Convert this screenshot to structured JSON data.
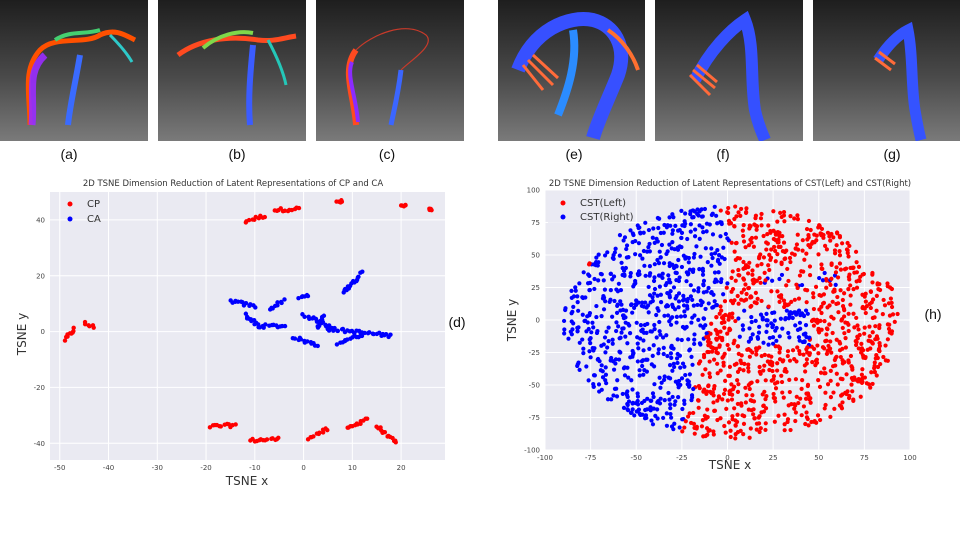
{
  "panels": [
    {
      "id": "a",
      "label": "(a)"
    },
    {
      "id": "b",
      "label": "(b)"
    },
    {
      "id": "c",
      "label": "(c)"
    },
    {
      "id": "e",
      "label": "(e)"
    },
    {
      "id": "f",
      "label": "(f)"
    },
    {
      "id": "g",
      "label": "(g)"
    }
  ],
  "chart_labels": {
    "d": "(d)",
    "h": "(h)"
  },
  "colors": {
    "red": "#ff0000",
    "blue": "#0000ff",
    "plot_bg": "#eaeaf2",
    "grid": "#ffffff"
  },
  "chart_data": [
    {
      "type": "scatter",
      "title": "2D TSNE Dimension Reduction of Latent Representations of CP and CA",
      "xlabel": "TSNE x",
      "ylabel": "TSNE y",
      "xlim": [
        -52,
        29
      ],
      "ylim": [
        -46,
        50
      ],
      "xticks": [
        -50,
        -40,
        -30,
        -20,
        -10,
        0,
        10,
        20
      ],
      "yticks": [
        -40,
        -20,
        0,
        20,
        40
      ],
      "legend": "top-left",
      "series": [
        {
          "name": "CP",
          "color": "#ff0000",
          "segments": [
            [
              -49,
              -3,
              -47,
              1
            ],
            [
              -45,
              3,
              -43,
              1.5
            ],
            [
              -12,
              39.5,
              -8,
              41.5
            ],
            [
              -6,
              43.5,
              -1,
              44
            ],
            [
              7,
              46.5,
              8,
              46.5
            ],
            [
              20,
              45,
              21,
              45
            ],
            [
              26,
              43.5,
              26,
              43.5
            ],
            [
              -19,
              -34,
              -14,
              -33.5
            ],
            [
              -11,
              -39,
              -5,
              -38.5
            ],
            [
              1,
              -38,
              5,
              -35
            ],
            [
              9,
              -35,
              13,
              -31
            ],
            [
              15,
              -34,
              19,
              -40
            ]
          ]
        },
        {
          "name": "CA",
          "color": "#0000ff",
          "segments": [
            [
              -15,
              11,
              -10,
              9
            ],
            [
              -12,
              6,
              -9,
              2
            ],
            [
              -7,
              8,
              -4,
              11
            ],
            [
              -1,
              12,
              1,
              13
            ],
            [
              -9,
              2,
              -4,
              2
            ],
            [
              0,
              6,
              6,
              1.5
            ],
            [
              -2,
              -2,
              3,
              -5
            ],
            [
              5,
              1,
              18,
              -1.5
            ],
            [
              7,
              -4,
              12,
              -1
            ],
            [
              8,
              14,
              12,
              21
            ],
            [
              3,
              1,
              4,
              6
            ]
          ]
        }
      ]
    },
    {
      "type": "scatter",
      "title": "2D TSNE Dimension Reduction of Latent Representations of CST(Left) and CST(Right)",
      "xlabel": "TSNE x",
      "ylabel": "TSNE y",
      "xlim": [
        -100,
        100
      ],
      "ylim": [
        -100,
        100
      ],
      "xticks": [
        -100,
        -75,
        -50,
        -25,
        0,
        25,
        50,
        75,
        100
      ],
      "yticks": [
        -100,
        -75,
        -50,
        -25,
        0,
        25,
        50,
        75,
        100
      ],
      "legend": "top-left",
      "series": [
        {
          "name": "CST(Left)",
          "color": "#ff0000",
          "region": "right-half-and-bottom-arc"
        },
        {
          "name": "CST(Right)",
          "color": "#0000ff",
          "region": "left-half-and-center-band"
        }
      ]
    }
  ]
}
